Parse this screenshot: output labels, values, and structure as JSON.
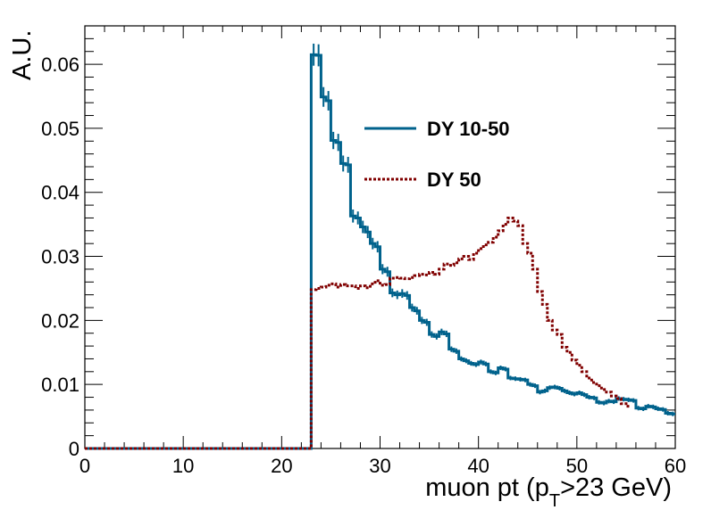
{
  "chart_data": {
    "type": "line",
    "style": "step-histogram",
    "xlabel_main": "muon pt (p",
    "xlabel_sub": "T",
    "xlabel_tail": ">23 GeV)",
    "ylabel": "A.U.",
    "xlim": [
      0,
      60
    ],
    "ylim": [
      0,
      0.066
    ],
    "x_ticks": [
      "0",
      "10",
      "20",
      "30",
      "40",
      "50",
      "60"
    ],
    "y_ticks": [
      "0",
      "0.01",
      "0.02",
      "0.03",
      "0.04",
      "0.05",
      "0.06"
    ],
    "grid": false,
    "legend_position": "top-center",
    "bin_width": 0.5,
    "x_start": 23,
    "series": [
      {
        "name": "DY 10-50",
        "color": "#00628c",
        "line_style": "solid",
        "values": [
          0.0615,
          0.0614,
          0.0549,
          0.0543,
          0.0481,
          0.0478,
          0.0445,
          0.0443,
          0.0363,
          0.036,
          0.0346,
          0.0338,
          0.032,
          0.0315,
          0.028,
          0.0276,
          0.0243,
          0.024,
          0.0242,
          0.0239,
          0.022,
          0.0215,
          0.02,
          0.0197,
          0.0178,
          0.0175,
          0.0182,
          0.0179,
          0.0155,
          0.0152,
          0.014,
          0.0137,
          0.0133,
          0.0131,
          0.0135,
          0.0132,
          0.012,
          0.0118,
          0.0126,
          0.0124,
          0.011,
          0.0109,
          0.0108,
          0.0107,
          0.01,
          0.0098,
          0.0088,
          0.009,
          0.0095,
          0.0096,
          0.0094,
          0.009,
          0.0087,
          0.0085,
          0.0087,
          0.0084,
          0.008,
          0.0079,
          0.0072,
          0.0071,
          0.0074,
          0.0073,
          0.0078,
          0.0077,
          0.0076,
          0.0075,
          0.0063,
          0.0062,
          0.0066,
          0.0065,
          0.0062,
          0.0061,
          0.0055,
          0.0054
        ]
      },
      {
        "name": "DY 50",
        "color": "#800000",
        "line_style": "dotted",
        "values": [
          0.0248,
          0.025,
          0.0252,
          0.0255,
          0.0257,
          0.0252,
          0.0256,
          0.0254,
          0.0254,
          0.025,
          0.0254,
          0.0251,
          0.0257,
          0.0262,
          0.0255,
          0.0256,
          0.0266,
          0.0267,
          0.0266,
          0.0265,
          0.0267,
          0.027,
          0.0272,
          0.0271,
          0.0275,
          0.0272,
          0.028,
          0.0288,
          0.0286,
          0.029,
          0.0296,
          0.03,
          0.0295,
          0.0305,
          0.0312,
          0.0318,
          0.0322,
          0.033,
          0.034,
          0.035,
          0.036,
          0.0355,
          0.0348,
          0.032,
          0.0305,
          0.028,
          0.0245,
          0.0225,
          0.02,
          0.0185,
          0.0178,
          0.0158,
          0.015,
          0.0138,
          0.013,
          0.012,
          0.011,
          0.0103,
          0.0098,
          0.0092,
          0.0088,
          0.0082,
          0.0078,
          0.007,
          0.0066
        ]
      }
    ]
  }
}
